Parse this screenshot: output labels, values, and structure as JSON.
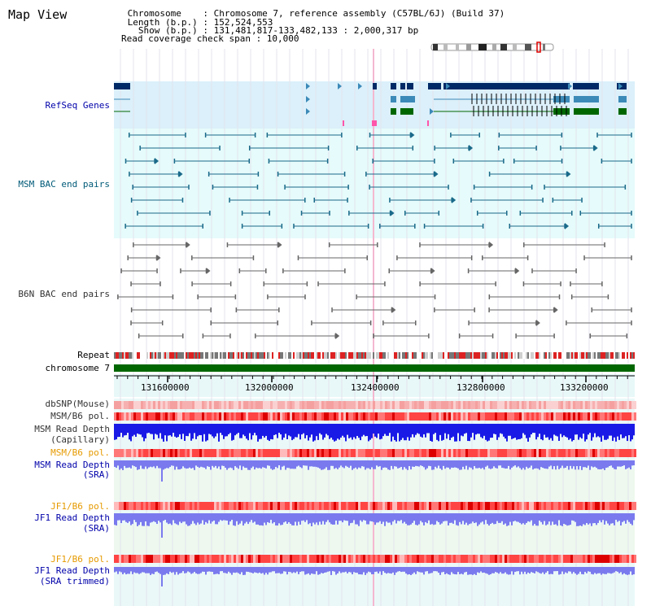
{
  "page": {
    "title": "Map View"
  },
  "info": {
    "lines": [
      " Chromosome    : Chromosome 7, reference assembly (C57BL/6J) (Build 37)",
      " Length (b.p.) : 152,524,553",
      "   Show (b.p.) : 131,481,817-133,482,133 : 2,000,317 bp",
      "Read coverage check span : 10,000"
    ]
  },
  "tracks": {
    "refseq_genes": "RefSeq Genes",
    "msm_bac": "MSM BAC end pairs",
    "b6n_bac": "B6N BAC end pairs",
    "repeat": "Repeat",
    "chromosome": "chromosome 7",
    "dbsnp": "dbSNP(Mouse)",
    "msm_b6_pol": "MSM/B6 pol.",
    "msm_read_depth_cap": [
      "MSM Read Depth",
      "(Capillary)"
    ],
    "msm_b6_pol_2": "MSM/B6 pol.",
    "msm_read_depth_sra": [
      "MSM Read Depth",
      "(SRA)"
    ],
    "jf1_b6_pol": "JF1/B6 pol.",
    "jf1_read_depth_sra": [
      "JF1 Read Depth",
      "(SRA)"
    ],
    "jf1_b6_pol_2": "JF1/B6 pol.",
    "jf1_read_depth_trim": [
      "JF1 Read Depth",
      "(SRA trimmed)"
    ]
  },
  "axis": {
    "ticks": [
      "131600000",
      "132000000",
      "132400000",
      "132800000",
      "133200000"
    ],
    "range": [
      131481817,
      133482133
    ]
  },
  "colors": {
    "navy": "#0000aa",
    "teal": "#005a78",
    "gene_dark": "#002a66",
    "gene_mid": "#3c8ab8",
    "gene_green": "#006600",
    "chromosome_bar": "#006600",
    "depth_blue": "#1a1ae6",
    "depth_sra": "#7a7aee",
    "orange_label": "#e69a00"
  }
}
